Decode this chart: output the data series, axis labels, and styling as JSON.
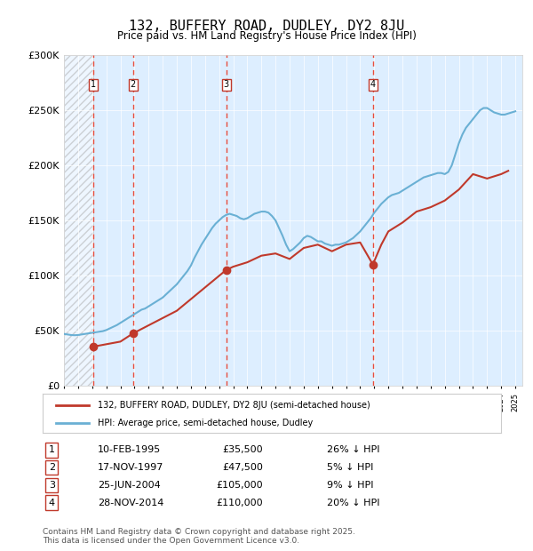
{
  "title": "132, BUFFERY ROAD, DUDLEY, DY2 8JU",
  "subtitle": "Price paid vs. HM Land Registry's House Price Index (HPI)",
  "ylabel": "",
  "xlabel": "",
  "ylim": [
    0,
    300000
  ],
  "yticks": [
    0,
    50000,
    100000,
    150000,
    200000,
    250000,
    300000
  ],
  "ytick_labels": [
    "£0",
    "£50K",
    "£100K",
    "£150K",
    "£200K",
    "£250K",
    "£300K"
  ],
  "xlim_start": 1993.0,
  "xlim_end": 2025.5,
  "sales": [
    {
      "year": 1995.1,
      "price": 35500,
      "label": "1"
    },
    {
      "year": 1997.9,
      "price": 47500,
      "label": "2"
    },
    {
      "year": 2004.5,
      "price": 105000,
      "label": "3"
    },
    {
      "year": 2014.9,
      "price": 110000,
      "label": "4"
    }
  ],
  "sale_table": [
    {
      "num": "1",
      "date": "10-FEB-1995",
      "price": "£35,500",
      "hpi": "26% ↓ HPI"
    },
    {
      "num": "2",
      "date": "17-NOV-1997",
      "price": "£47,500",
      "hpi": "5% ↓ HPI"
    },
    {
      "num": "3",
      "date": "25-JUN-2004",
      "price": "£105,000",
      "hpi": "9% ↓ HPI"
    },
    {
      "num": "4",
      "date": "28-NOV-2014",
      "price": "£110,000",
      "hpi": "20% ↓ HPI"
    }
  ],
  "hpi_line_color": "#6ab0d4",
  "price_line_color": "#c0392b",
  "sale_marker_color": "#c0392b",
  "vline_color": "#e74c3c",
  "background_color": "#ffffff",
  "plot_bg_color": "#ddeeff",
  "hatch_color": "#bbbbbb",
  "legend_line1": "132, BUFFERY ROAD, DUDLEY, DY2 8JU (semi-detached house)",
  "legend_line2": "HPI: Average price, semi-detached house, Dudley",
  "footer": "Contains HM Land Registry data © Crown copyright and database right 2025.\nThis data is licensed under the Open Government Licence v3.0.",
  "hpi_data_x": [
    1993.0,
    1993.25,
    1993.5,
    1993.75,
    1994.0,
    1994.25,
    1994.5,
    1994.75,
    1995.0,
    1995.25,
    1995.5,
    1995.75,
    1996.0,
    1996.25,
    1996.5,
    1996.75,
    1997.0,
    1997.25,
    1997.5,
    1997.75,
    1998.0,
    1998.25,
    1998.5,
    1998.75,
    1999.0,
    1999.25,
    1999.5,
    1999.75,
    2000.0,
    2000.25,
    2000.5,
    2000.75,
    2001.0,
    2001.25,
    2001.5,
    2001.75,
    2002.0,
    2002.25,
    2002.5,
    2002.75,
    2003.0,
    2003.25,
    2003.5,
    2003.75,
    2004.0,
    2004.25,
    2004.5,
    2004.75,
    2005.0,
    2005.25,
    2005.5,
    2005.75,
    2006.0,
    2006.25,
    2006.5,
    2006.75,
    2007.0,
    2007.25,
    2007.5,
    2007.75,
    2008.0,
    2008.25,
    2008.5,
    2008.75,
    2009.0,
    2009.25,
    2009.5,
    2009.75,
    2010.0,
    2010.25,
    2010.5,
    2010.75,
    2011.0,
    2011.25,
    2011.5,
    2011.75,
    2012.0,
    2012.25,
    2012.5,
    2012.75,
    2013.0,
    2013.25,
    2013.5,
    2013.75,
    2014.0,
    2014.25,
    2014.5,
    2014.75,
    2015.0,
    2015.25,
    2015.5,
    2015.75,
    2016.0,
    2016.25,
    2016.5,
    2016.75,
    2017.0,
    2017.25,
    2017.5,
    2017.75,
    2018.0,
    2018.25,
    2018.5,
    2018.75,
    2019.0,
    2019.25,
    2019.5,
    2019.75,
    2020.0,
    2020.25,
    2020.5,
    2020.75,
    2021.0,
    2021.25,
    2021.5,
    2021.75,
    2022.0,
    2022.25,
    2022.5,
    2022.75,
    2023.0,
    2023.25,
    2023.5,
    2023.75,
    2024.0,
    2024.25,
    2024.5,
    2024.75,
    2025.0
  ],
  "hpi_data_y": [
    47000,
    46500,
    46000,
    45800,
    46000,
    46500,
    47000,
    47500,
    48000,
    48500,
    49000,
    49500,
    50500,
    52000,
    53500,
    55000,
    57000,
    59000,
    61000,
    63000,
    65000,
    67000,
    69000,
    70000,
    72000,
    74000,
    76000,
    78000,
    80000,
    83000,
    86000,
    89000,
    92000,
    96000,
    100000,
    104000,
    109000,
    116000,
    122000,
    128000,
    133000,
    138000,
    143000,
    147000,
    150000,
    153000,
    155000,
    156000,
    155000,
    154000,
    152000,
    151000,
    152000,
    154000,
    156000,
    157000,
    158000,
    158000,
    157000,
    154000,
    150000,
    143000,
    136000,
    128000,
    122000,
    124000,
    127000,
    130000,
    134000,
    136000,
    135000,
    133000,
    131000,
    131000,
    129000,
    128000,
    127000,
    128000,
    128000,
    129000,
    130000,
    132000,
    134000,
    137000,
    140000,
    144000,
    148000,
    152000,
    157000,
    161000,
    165000,
    168000,
    171000,
    173000,
    174000,
    175000,
    177000,
    179000,
    181000,
    183000,
    185000,
    187000,
    189000,
    190000,
    191000,
    192000,
    193000,
    193000,
    192000,
    194000,
    200000,
    210000,
    220000,
    228000,
    234000,
    238000,
    242000,
    246000,
    250000,
    252000,
    252000,
    250000,
    248000,
    247000,
    246000,
    246000,
    247000,
    248000,
    249000
  ],
  "price_data_x": [
    1995.1,
    1997.0,
    1997.9,
    2001.0,
    2004.5,
    2005.0,
    2006.0,
    2007.0,
    2008.0,
    2009.0,
    2010.0,
    2011.0,
    2012.0,
    2013.0,
    2014.0,
    2014.9,
    2015.5,
    2016.0,
    2017.0,
    2018.0,
    2019.0,
    2020.0,
    2021.0,
    2022.0,
    2023.0,
    2024.0,
    2024.5
  ],
  "price_data_y": [
    35500,
    40000,
    47500,
    68000,
    105000,
    108000,
    112000,
    118000,
    120000,
    115000,
    125000,
    128000,
    122000,
    128000,
    130000,
    110000,
    128000,
    140000,
    148000,
    158000,
    162000,
    168000,
    178000,
    192000,
    188000,
    192000,
    195000
  ]
}
